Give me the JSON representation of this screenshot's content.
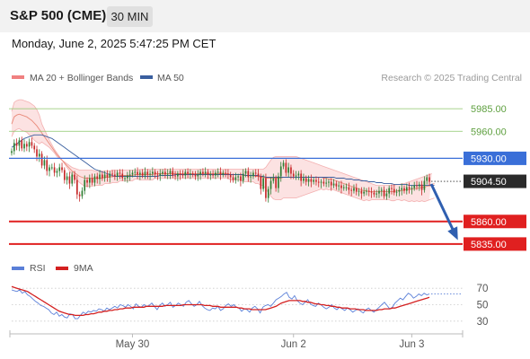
{
  "header": {
    "title": "S&P 500 (CME)",
    "interval": "30 MIN",
    "timestamp": "Monday, June 2, 2025 5:47:25 PM CET"
  },
  "legend": {
    "bollinger": "MA 20 + Bollinger Bands",
    "ma50": "MA 50",
    "credit": "Research © 2025 Trading Central",
    "rsi": "RSI",
    "rsi_ma": "9MA"
  },
  "colors": {
    "bollinger": "#f08080",
    "ma50": "#3a5f9f",
    "resistance": "#8cc66a",
    "pivot": "#3a6fd8",
    "support": "#e02020",
    "last": "#2a2a2a",
    "candle_up": "#2e7d32",
    "candle_down": "#c62828",
    "rsi": "#5a7fd8",
    "rsi_ma": "#d42020",
    "arrow": "#2f5fb0"
  },
  "chart_data": [
    {
      "type": "candlestick",
      "title": "S&P 500 (CME) 30 MIN",
      "xlabels": [
        "May 30",
        "Jun 2",
        "Jun 3"
      ],
      "x_ticks": [
        48,
        112,
        159
      ],
      "ylim": [
        5815,
        6010
      ],
      "levels": [
        {
          "value": 5985.0,
          "label": "5985.00",
          "kind": "resistance"
        },
        {
          "value": 5960.0,
          "label": "5960.00",
          "kind": "resistance"
        },
        {
          "value": 5930.0,
          "label": "5930.00",
          "kind": "pivot"
        },
        {
          "value": 5904.5,
          "label": "5904.50",
          "kind": "last"
        },
        {
          "value": 5860.0,
          "label": "5860.00",
          "kind": "support"
        },
        {
          "value": 5835.0,
          "label": "5835.00",
          "kind": "support"
        }
      ],
      "close": [
        5938,
        5947,
        5944,
        5950,
        5941,
        5946,
        5943,
        5948,
        5944,
        5940,
        5932,
        5935,
        5922,
        5928,
        5916,
        5920,
        5920,
        5914,
        5916,
        5920,
        5917,
        5906,
        5910,
        5902,
        5912,
        5906,
        5890,
        5888,
        5894,
        5906,
        5903,
        5908,
        5903,
        5910,
        5907,
        5912,
        5908,
        5912,
        5909,
        5913,
        5912,
        5910,
        5914,
        5913,
        5908,
        5908,
        5911,
        5912,
        5914,
        5915,
        5912,
        5914,
        5911,
        5915,
        5912,
        5913,
        5915,
        5912,
        5911,
        5913,
        5915,
        5912,
        5913,
        5916,
        5911,
        5910,
        5913,
        5912,
        5911,
        5915,
        5913,
        5913,
        5912,
        5910,
        5912,
        5915,
        5913,
        5915,
        5912,
        5912,
        5911,
        5914,
        5915,
        5912,
        5914,
        5913,
        5912,
        5909,
        5906,
        5909,
        5910,
        5905,
        5913,
        5916,
        5909,
        5910,
        5914,
        5913,
        5910,
        5896,
        5908,
        5886,
        5896,
        5905,
        5908,
        5897,
        5910,
        5921,
        5925,
        5914,
        5920,
        5913,
        5910,
        5911,
        5913,
        5905,
        5908,
        5904,
        5907,
        5904,
        5906,
        5904,
        5903,
        5904,
        5902,
        5903,
        5904,
        5900,
        5902,
        5899,
        5900,
        5897,
        5898,
        5898,
        5895,
        5894,
        5897,
        5893,
        5894,
        5891,
        5893,
        5894,
        5893,
        5892,
        5890,
        5891,
        5894,
        5895,
        5888,
        5891,
        5897,
        5896,
        5892,
        5893,
        5895,
        5897,
        5894,
        5898,
        5896,
        5897,
        5900,
        5899,
        5901,
        5895,
        5905,
        5909,
        5904
      ],
      "ma20": [
        5968,
        5976,
        5978,
        5979,
        5978,
        5977,
        5976,
        5974,
        5972,
        5969,
        5966,
        5962,
        5958,
        5954,
        5950,
        5946,
        5942,
        5938,
        5934,
        5931,
        5928,
        5925,
        5922,
        5919,
        5916,
        5914,
        5912,
        5910,
        5909,
        5908,
        5908,
        5908,
        5908,
        5908,
        5908,
        5908,
        5908,
        5909,
        5909,
        5909,
        5910,
        5910,
        5910,
        5911,
        5911,
        5911,
        5911,
        5911,
        5911,
        5912,
        5912,
        5912,
        5912,
        5912,
        5912,
        5912,
        5912,
        5913,
        5913,
        5913,
        5913,
        5913,
        5913,
        5913,
        5913,
        5913,
        5913,
        5913,
        5913,
        5913,
        5913,
        5913,
        5913,
        5913,
        5913,
        5913,
        5913,
        5913,
        5913,
        5913,
        5913,
        5913,
        5913,
        5913,
        5913,
        5913,
        5913,
        5912,
        5912,
        5912,
        5912,
        5912,
        5911,
        5911,
        5911,
        5911,
        5911,
        5910,
        5910,
        5909,
        5909,
        5908,
        5908,
        5908,
        5908,
        5908,
        5908,
        5908,
        5909,
        5909,
        5909,
        5909,
        5909,
        5909,
        5909,
        5909,
        5909,
        5909,
        5909,
        5909,
        5909,
        5909,
        5909,
        5909,
        5908,
        5908,
        5907,
        5907,
        5906,
        5905,
        5904,
        5903,
        5902,
        5901,
        5900,
        5899,
        5898,
        5897,
        5896,
        5895,
        5894,
        5894,
        5893,
        5893,
        5893,
        5893,
        5893,
        5893,
        5893,
        5893,
        5893,
        5893,
        5893,
        5894,
        5894,
        5894,
        5895,
        5895,
        5895,
        5896,
        5896,
        5897,
        5897,
        5898,
        5898,
        5899,
        5900,
        5901,
        5902
      ],
      "bb_upper": [
        5982,
        5992,
        5994,
        5995,
        5995,
        5994,
        5993,
        5992,
        5990,
        5988,
        5984,
        5978,
        5968,
        5962,
        5956,
        5950,
        5945,
        5940,
        5936,
        5932,
        5928,
        5926,
        5924,
        5922,
        5920,
        5919,
        5918,
        5917,
        5917,
        5917,
        5917,
        5917,
        5917,
        5916,
        5916,
        5916,
        5916,
        5916,
        5916,
        5916,
        5917,
        5917,
        5917,
        5917,
        5917,
        5917,
        5917,
        5917,
        5917,
        5917,
        5917,
        5918,
        5918,
        5918,
        5918,
        5918,
        5918,
        5918,
        5918,
        5918,
        5918,
        5918,
        5918,
        5918,
        5918,
        5918,
        5918,
        5918,
        5918,
        5918,
        5918,
        5918,
        5918,
        5918,
        5918,
        5918,
        5918,
        5918,
        5918,
        5918,
        5918,
        5918,
        5918,
        5918,
        5918,
        5918,
        5918,
        5918,
        5918,
        5918,
        5918,
        5918,
        5918,
        5918,
        5918,
        5918,
        5918,
        5918,
        5918,
        5918,
        5918,
        5920,
        5924,
        5928,
        5931,
        5932,
        5932,
        5932,
        5932,
        5932,
        5932,
        5932,
        5932,
        5932,
        5931,
        5930,
        5929,
        5928,
        5927,
        5926,
        5925,
        5924,
        5923,
        5922,
        5921,
        5920,
        5919,
        5918,
        5917,
        5916,
        5915,
        5914,
        5913,
        5912,
        5911,
        5910,
        5909,
        5908,
        5907,
        5906,
        5905,
        5904,
        5903,
        5902,
        5901,
        5900,
        5900,
        5900,
        5900,
        5900,
        5900,
        5900,
        5900,
        5901,
        5901,
        5902,
        5902,
        5903,
        5904,
        5905,
        5906,
        5907,
        5908,
        5909,
        5910,
        5911,
        5912,
        5913
      ],
      "bb_lower": [
        5954,
        5960,
        5962,
        5963,
        5961,
        5960,
        5959,
        5956,
        5954,
        5950,
        5948,
        5946,
        5948,
        5946,
        5944,
        5942,
        5939,
        5936,
        5932,
        5930,
        5928,
        5924,
        5920,
        5916,
        5912,
        5909,
        5906,
        5903,
        5901,
        5899,
        5899,
        5899,
        5899,
        5900,
        5900,
        5900,
        5900,
        5902,
        5902,
        5902,
        5903,
        5903,
        5903,
        5905,
        5905,
        5905,
        5905,
        5905,
        5905,
        5907,
        5907,
        5906,
        5906,
        5906,
        5906,
        5906,
        5906,
        5908,
        5908,
        5908,
        5908,
        5908,
        5908,
        5908,
        5908,
        5908,
        5908,
        5908,
        5908,
        5908,
        5908,
        5908,
        5908,
        5908,
        5908,
        5908,
        5908,
        5908,
        5908,
        5908,
        5908,
        5908,
        5908,
        5908,
        5908,
        5908,
        5908,
        5906,
        5906,
        5906,
        5906,
        5906,
        5904,
        5904,
        5904,
        5904,
        5904,
        5902,
        5902,
        5900,
        5900,
        5896,
        5892,
        5888,
        5885,
        5884,
        5884,
        5884,
        5886,
        5886,
        5886,
        5886,
        5886,
        5886,
        5887,
        5888,
        5889,
        5890,
        5891,
        5892,
        5893,
        5894,
        5895,
        5896,
        5895,
        5896,
        5895,
        5896,
        5895,
        5894,
        5893,
        5892,
        5891,
        5890,
        5889,
        5888,
        5887,
        5886,
        5885,
        5884,
        5883,
        5884,
        5883,
        5884,
        5884,
        5884,
        5884,
        5884,
        5884,
        5884,
        5884,
        5883,
        5883,
        5884,
        5884,
        5883,
        5884,
        5883,
        5882,
        5883,
        5882,
        5883,
        5882,
        5883,
        5882,
        5883,
        5884,
        5885,
        5886
      ],
      "ma50": [
        5942,
        5944,
        5946,
        5948,
        5950,
        5952,
        5953,
        5954,
        5955,
        5956,
        5956,
        5956,
        5956,
        5955,
        5954,
        5953,
        5952,
        5950,
        5948,
        5946,
        5944,
        5942,
        5940,
        5938,
        5936,
        5934,
        5932,
        5930,
        5928,
        5926,
        5924,
        5922,
        5920,
        5918,
        5917,
        5916,
        5915,
        5914,
        5913,
        5912,
        5911,
        5910,
        5910,
        5910,
        5910,
        5910,
        5910,
        5910,
        5910,
        5910,
        5910,
        5910,
        5910,
        5910,
        5910,
        5910,
        5910,
        5910,
        5910,
        5911,
        5911,
        5911,
        5911,
        5911,
        5911,
        5912,
        5912,
        5912,
        5912,
        5912,
        5912,
        5912,
        5912,
        5912,
        5912,
        5912,
        5912,
        5912,
        5912,
        5912,
        5912,
        5912,
        5912,
        5912,
        5912,
        5912,
        5912,
        5912,
        5912,
        5912,
        5912,
        5912,
        5912,
        5911,
        5911,
        5911,
        5911,
        5911,
        5911,
        5910,
        5910,
        5909,
        5909,
        5909,
        5909,
        5909,
        5909,
        5909,
        5909,
        5909,
        5909,
        5909,
        5909,
        5909,
        5909,
        5909,
        5909,
        5909,
        5909,
        5909,
        5909,
        5909,
        5909,
        5909,
        5909,
        5909,
        5909,
        5909,
        5909,
        5908,
        5908,
        5908,
        5908,
        5907,
        5907,
        5907,
        5906,
        5906,
        5906,
        5905,
        5905,
        5905,
        5904,
        5904,
        5904,
        5903,
        5903,
        5903,
        5902,
        5902,
        5902,
        5902,
        5901,
        5901,
        5901,
        5901,
        5901,
        5901,
        5900,
        5900,
        5900,
        5900,
        5900,
        5900,
        5900,
        5900,
        5900,
        5900,
        5900
      ],
      "forecast": {
        "from": 5904.5,
        "to": 5835.0
      }
    },
    {
      "type": "line",
      "title": "RSI",
      "ylim": [
        20,
        80
      ],
      "y_ticks": [
        70,
        50,
        30
      ],
      "series": [
        {
          "name": "RSI",
          "values": [
            68,
            67,
            66,
            68,
            64,
            66,
            62,
            60,
            57,
            54,
            52,
            49,
            48,
            46,
            44,
            40,
            38,
            41,
            36,
            38,
            35,
            34,
            39,
            38,
            33,
            33,
            37,
            41,
            39,
            42,
            41,
            43,
            42,
            45,
            44,
            42,
            46,
            44,
            46,
            48,
            46,
            50,
            49,
            47,
            50,
            48,
            45,
            51,
            48,
            47,
            50,
            48,
            49,
            52,
            48,
            44,
            49,
            52,
            48,
            50,
            53,
            47,
            49,
            52,
            50,
            48,
            53,
            55,
            51,
            48,
            50,
            54,
            49,
            46,
            44,
            43,
            46,
            45,
            48,
            43,
            45,
            49,
            51,
            48,
            50,
            47,
            46,
            42,
            45,
            44,
            41,
            46,
            48,
            45,
            40,
            47,
            49,
            50,
            48,
            52,
            56,
            58,
            60,
            63,
            65,
            59,
            57,
            61,
            55,
            52,
            50,
            53,
            56,
            51,
            49,
            48,
            52,
            50,
            47,
            45,
            47,
            50,
            46,
            44,
            47,
            45,
            43,
            46,
            44,
            41,
            43,
            45,
            42,
            40,
            44,
            46,
            43,
            41,
            44,
            47,
            50,
            53,
            49,
            45,
            47,
            52,
            55,
            58,
            56,
            60,
            64,
            62,
            58,
            60,
            63,
            61,
            64,
            62,
            63
          ]
        },
        {
          "name": "9MA",
          "values": [
            72,
            71,
            70,
            69,
            68,
            67,
            66,
            64,
            62,
            60,
            58,
            56,
            54,
            52,
            50,
            48,
            46,
            44,
            42,
            41,
            40,
            39,
            38,
            38,
            37,
            37,
            37,
            37,
            38,
            38,
            39,
            39,
            40,
            41,
            41,
            42,
            42,
            43,
            43,
            44,
            44,
            45,
            45,
            46,
            46,
            46,
            47,
            47,
            47,
            47,
            47,
            48,
            48,
            48,
            48,
            48,
            48,
            48,
            49,
            49,
            49,
            49,
            49,
            49,
            49,
            50,
            50,
            50,
            50,
            50,
            50,
            50,
            50,
            49,
            49,
            49,
            48,
            48,
            48,
            47,
            47,
            47,
            47,
            47,
            47,
            47,
            46,
            46,
            45,
            45,
            45,
            44,
            44,
            44,
            44,
            44,
            44,
            45,
            46,
            47,
            48,
            50,
            52,
            53,
            54,
            55,
            55,
            55,
            55,
            55,
            54,
            54,
            53,
            53,
            52,
            51,
            51,
            50,
            50,
            49,
            49,
            48,
            48,
            47,
            47,
            46,
            46,
            46,
            45,
            45,
            45,
            44,
            44,
            44,
            43,
            43,
            43,
            43,
            43,
            44,
            44,
            45,
            45,
            45,
            46,
            46,
            47,
            48,
            49,
            50,
            51,
            52,
            53,
            54,
            55,
            56,
            57,
            58,
            59
          ]
        }
      ]
    }
  ]
}
